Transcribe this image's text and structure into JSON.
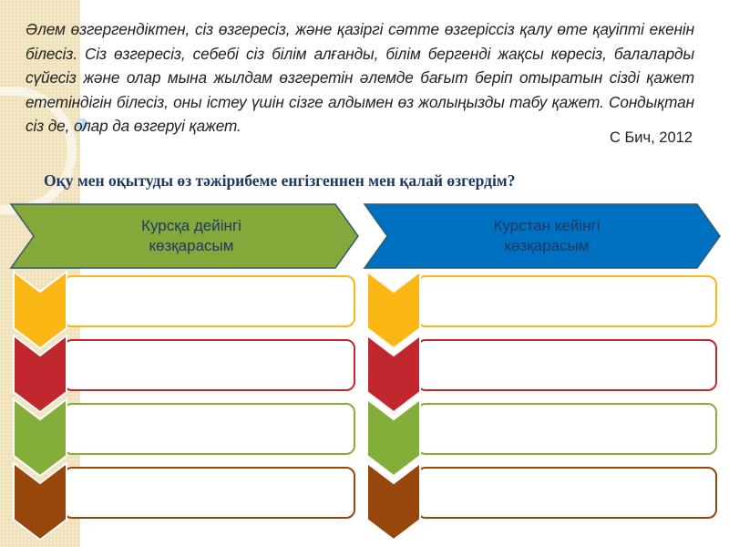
{
  "quote": {
    "text": "Әлем өзгергендіктен, сіз өзгересіз, және қазіргі сәтте өзгеріссіз қалу өте қауіпті екенін білесіз.  Сіз өзгересіз, себебі сіз білім алғанды, білім бергенді жақсы көресіз, балаларды сүйесіз және олар мына жылдам өзгеретін әлемде бағыт беріп отыратын сізді қажет ететіндігін білесіз, оны істеу үшін сізге алдымен өз жолыңызды табу қажет. Сондықтан сіз де, олар да өзгеруі қажет.",
    "author": "С Бич, 2012"
  },
  "question": "Оқу мен оқытуды өз  тәжірибеме енгізгеннен мен қалай өзгердім?",
  "columns": [
    {
      "title_line1": "Курсқа дейінгі",
      "title_line2": "көзқарасым",
      "color": "#84a93a"
    },
    {
      "title_line1": "Курстан кейінгі",
      "title_line2": "көзқарасым",
      "color": "#0070c0"
    }
  ],
  "row_colors": [
    "#fbb714",
    "#c0282e",
    "#84ae3a",
    "#97460c"
  ]
}
